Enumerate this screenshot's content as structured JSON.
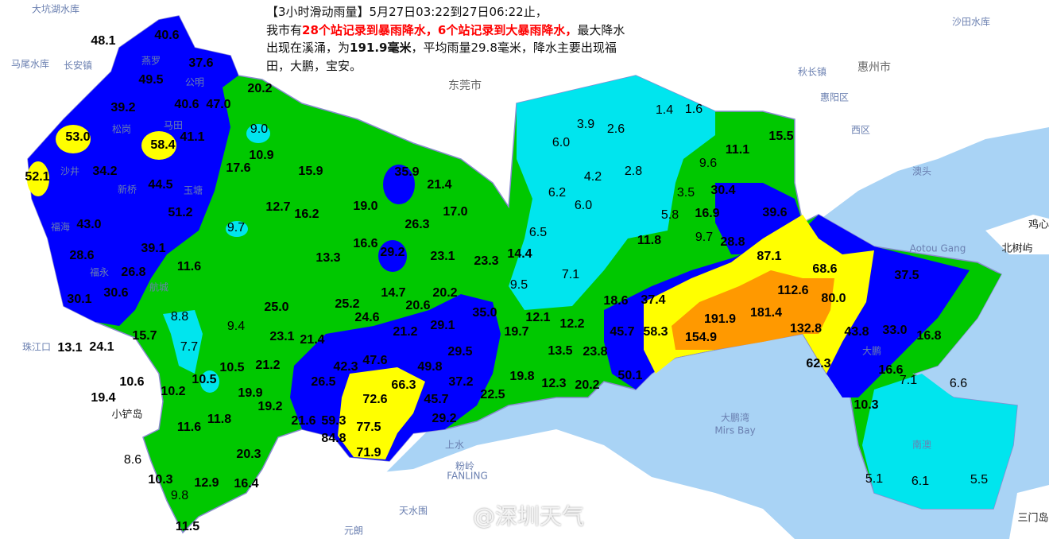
{
  "notice": {
    "line1": "【3小时滑动雨量】5月27日03:22到27日06:22止，",
    "prefix": "我市有",
    "highlight": "28个站记录到暴雨降水，6个站记录到大暴雨降水，",
    "mid": "最大降水出现在溪涌，为",
    "max_value": "191.9毫米",
    "suffix": "，平均雨量29.8毫米，降水主要出现福田，大鹏，宝安。"
  },
  "watermark": "@深圳天气",
  "colors": {
    "sea": "#a9d3f5",
    "land": "#ffffff",
    "lt10": "#00e5ee",
    "10to25": "#00c800",
    "25to50": "#0000ff",
    "50to100": "#ffff00",
    "100to250": "#ff9900"
  },
  "places": [
    "大坑湖水库",
    "马尾水库",
    "长安镇",
    "东莞市",
    "惠州市",
    "沙田水库",
    "秋长镇",
    "惠阳区",
    "西区",
    "澳头",
    "鸡心",
    "北树屿",
    "Aotou Gang",
    "大鹏湾",
    "Mirs Bay",
    "珠江口",
    "小铲岛",
    "天水围",
    "元朗",
    "粉岭",
    "FANLING",
    "上水",
    "三门岛",
    "燕罗",
    "公明",
    "松岗",
    "马田",
    "新桥",
    "沙井",
    "玉塘",
    "福海",
    "福永",
    "航城",
    "大鹏",
    "南澳"
  ],
  "labels": [
    "48.1",
    "40.6",
    "37.6",
    "49.5",
    "39.2",
    "40.6",
    "47.0",
    "20.2",
    "9.0",
    "53.0",
    "58.4",
    "41.1",
    "10.9",
    "17.6",
    "15.9",
    "35.9",
    "21.4",
    "52.1",
    "34.2",
    "44.5",
    "12.7",
    "16.2",
    "19.0",
    "17.0",
    "51.2",
    "43.0",
    "9.7",
    "26.3",
    "16.6",
    "29.2",
    "23.1",
    "23.3",
    "14.4",
    "6.5",
    "39.1",
    "28.6",
    "13.3",
    "11.6",
    "26.8",
    "30.6",
    "30.1",
    "25.0",
    "25.2",
    "14.7",
    "20.6",
    "20.2",
    "35.0",
    "24.6",
    "9.5",
    "7.1",
    "18.6",
    "37.4",
    "87.1",
    "68.6",
    "112.6",
    "80.0",
    "37.5",
    "8.8",
    "9.4",
    "15.7",
    "13.1",
    "24.1",
    "7.7",
    "23.1",
    "21.4",
    "21.2",
    "29.1",
    "19.7",
    "12.1",
    "12.2",
    "45.7",
    "58.3",
    "191.9",
    "181.4",
    "132.8",
    "154.9",
    "43.8",
    "33.0",
    "16.8",
    "21.2",
    "10.5",
    "10.5",
    "42.3",
    "47.6",
    "49.8",
    "29.5",
    "13.5",
    "23.8",
    "62.3",
    "16.6",
    "26.5",
    "66.3",
    "37.2",
    "19.8",
    "12.3",
    "20.2",
    "50.1",
    "10.6",
    "19.4",
    "10.2",
    "19.9",
    "72.6",
    "45.7",
    "22.5",
    "7.1",
    "6.6",
    "10.3",
    "19.2",
    "21.6",
    "59.3",
    "29.2",
    "11.8",
    "11.6",
    "77.5",
    "84.8",
    "71.9",
    "20.3",
    "8.6",
    "10.3",
    "12.9",
    "16.4",
    "9.8",
    "11.5",
    "5.1",
    "6.1",
    "5.5",
    "3.9",
    "2.6",
    "1.4",
    "1.6",
    "6.0",
    "4.2",
    "2.8",
    "6.2",
    "6.0",
    "3.5",
    "5.8",
    "30.4",
    "39.6",
    "11.1",
    "15.5",
    "9.6",
    "16.9",
    "9.7",
    "28.8",
    "11.8"
  ]
}
